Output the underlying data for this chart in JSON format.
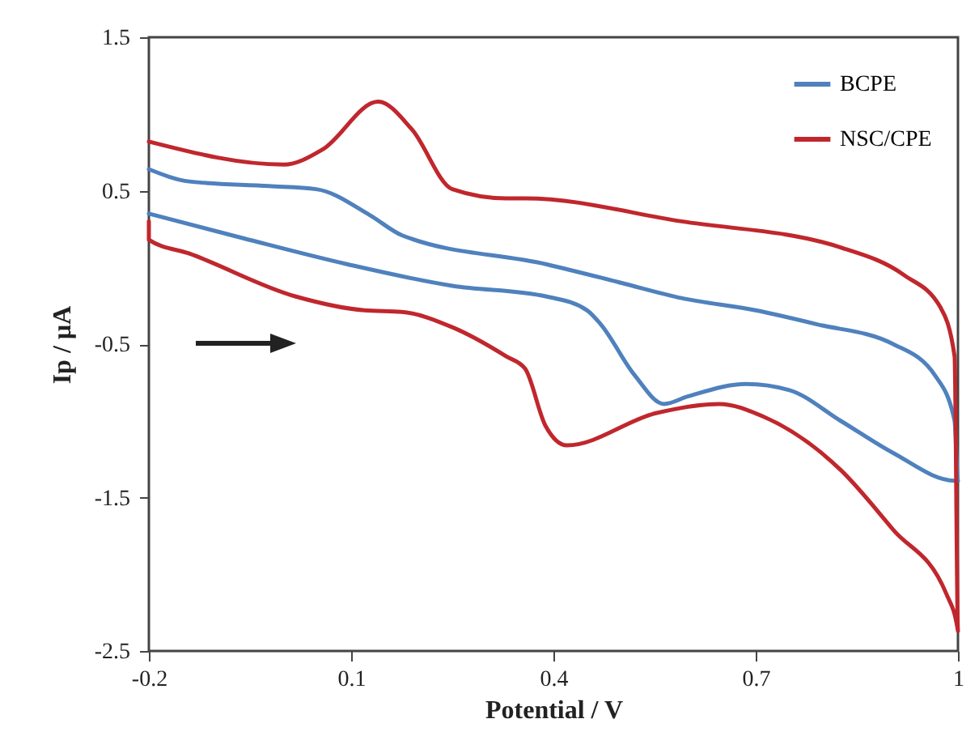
{
  "chart_data": {
    "type": "line",
    "xlabel": "Potential / V",
    "ylabel": "Ip / µA",
    "xlim": [
      -0.2,
      1
    ],
    "xticks": [
      -0.2,
      0.1,
      0.4,
      0.7,
      1
    ],
    "ylim": [
      -2.5,
      1.5
    ],
    "yticks": [
      -2.5,
      -1.5,
      -0.5,
      0.5,
      1.5
    ],
    "grid": false,
    "legend": "top right",
    "line_style": "solid",
    "marker": "none",
    "series": [
      {
        "name": "BCPE",
        "color": "#4f81bd",
        "x": [
          -0.2,
          -0.06,
          0.095,
          0.25,
          0.39,
          0.45,
          0.47,
          0.52,
          0.564,
          0.6,
          0.686,
          0.75,
          0.826,
          0.904,
          0.995,
          1.0,
          0.995,
          0.967,
          0.904,
          0.79,
          0.7,
          0.59,
          0.5,
          0.39,
          0.175,
          0.128,
          0.048,
          -0.022,
          -0.14,
          -0.2
        ],
        "values": [
          0.35,
          0.19,
          0.02,
          -0.12,
          -0.19,
          -0.28,
          -0.37,
          -0.7,
          -0.89,
          -0.84,
          -0.76,
          -0.8,
          -1.0,
          -1.21,
          -1.39,
          -1.39,
          -1.0,
          -0.71,
          -0.5,
          -0.37,
          -0.28,
          -0.2,
          -0.1,
          0.02,
          0.21,
          0.34,
          0.51,
          0.53,
          0.56,
          0.64
        ]
      },
      {
        "name": "NSC/CPE",
        "color": "#c0272d",
        "x": [
          -0.2,
          -0.2,
          -0.14,
          0.018,
          0.12,
          0.175,
          0.25,
          0.33,
          0.358,
          0.388,
          0.42,
          0.552,
          0.646,
          0.71,
          0.826,
          0.904,
          0.983,
          1.0,
          0.995,
          0.974,
          0.92,
          0.826,
          0.59,
          0.358,
          0.33,
          0.25,
          0.19,
          0.14,
          0.058,
          0.0,
          -0.2
        ],
        "values": [
          0.3,
          0.18,
          0.09,
          -0.19,
          -0.28,
          -0.29,
          -0.39,
          -0.58,
          -0.66,
          -1.03,
          -1.16,
          -0.95,
          -0.89,
          -0.97,
          -1.32,
          -1.71,
          -2.13,
          -2.37,
          -0.58,
          -0.26,
          -0.05,
          0.13,
          0.3,
          0.45,
          0.45,
          0.51,
          0.9,
          1.08,
          0.77,
          0.67,
          0.82
        ]
      }
    ]
  }
}
